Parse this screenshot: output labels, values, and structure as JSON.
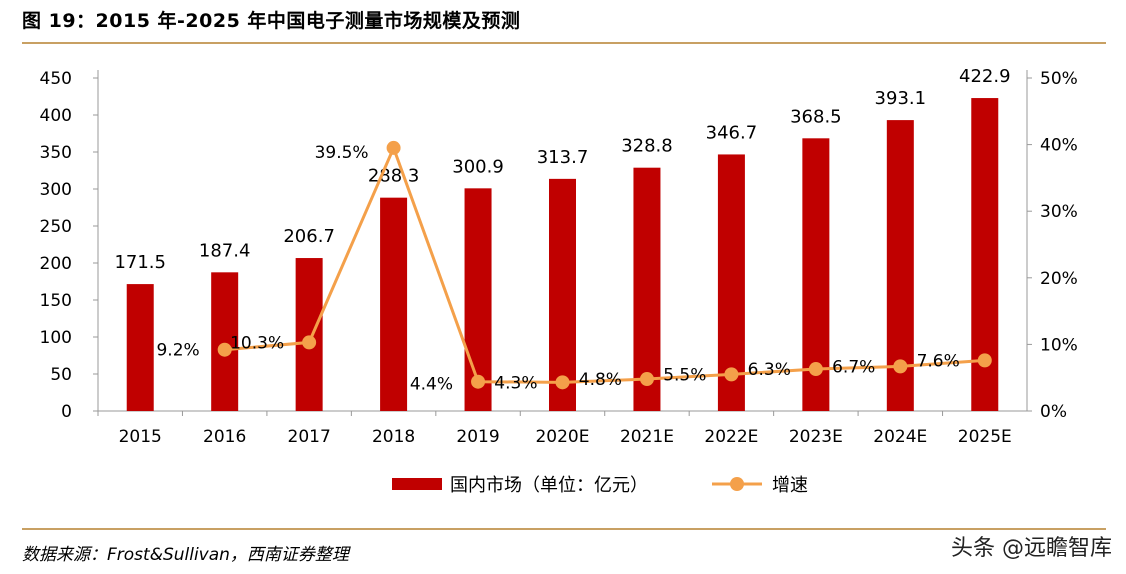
{
  "figure_title": "图 19：2015 年-2025 年中国电子测量市场规模及预测",
  "source_note": "数据来源：Frost&Sullivan，西南证券整理",
  "watermark": "头条 @远瞻智库",
  "colors": {
    "bar": "#c00000",
    "line": "#f4a04a",
    "rule": "#c8a063",
    "axis": "#999999"
  },
  "chart_data": {
    "type": "bar",
    "categories": [
      "2015",
      "2016",
      "2017",
      "2018",
      "2019",
      "2020E",
      "2021E",
      "2022E",
      "2023E",
      "2024E",
      "2025E"
    ],
    "series": [
      {
        "name": "国内市场（单位：亿元）",
        "type": "bar",
        "axis": "left",
        "values": [
          171.5,
          187.4,
          206.7,
          288.3,
          300.9,
          313.7,
          328.8,
          346.7,
          368.5,
          393.1,
          422.9
        ],
        "labels": [
          "171.5",
          "187.4",
          "206.7",
          "288.3",
          "300.9",
          "313.7",
          "328.8",
          "346.7",
          "368.5",
          "393.1",
          "422.9"
        ]
      },
      {
        "name": "增速",
        "type": "line",
        "axis": "right",
        "values": [
          null,
          9.2,
          10.3,
          39.5,
          4.4,
          4.3,
          4.8,
          5.5,
          6.3,
          6.7,
          7.6
        ],
        "labels": [
          "",
          "9.2%",
          "10.3%",
          "39.5%",
          "4.4%",
          "4.3%",
          "4.8%",
          "5.5%",
          "6.3%",
          "6.7%",
          "7.6%"
        ]
      }
    ],
    "y_left": {
      "min": 0,
      "max": 450,
      "ticks": [
        "0",
        "50",
        "100",
        "150",
        "200",
        "250",
        "300",
        "350",
        "400",
        "450"
      ]
    },
    "y_right": {
      "min": 0,
      "max": 50,
      "ticks": [
        "0%",
        "10%",
        "20%",
        "30%",
        "40%",
        "50%"
      ]
    },
    "legend_position": "bottom",
    "grid": false
  }
}
